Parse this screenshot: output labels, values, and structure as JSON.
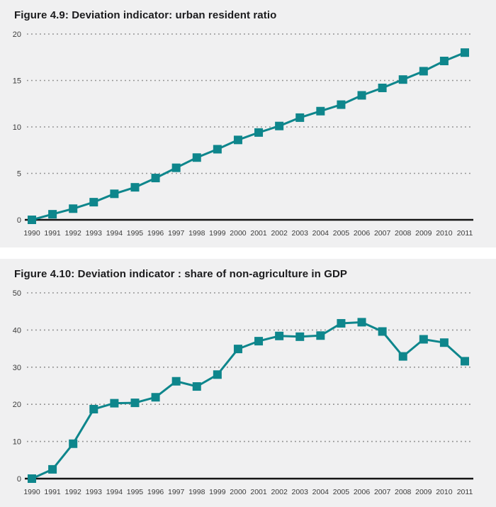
{
  "page": {
    "background": "#ffffff",
    "panel_background": "#f0f0f1"
  },
  "style": {
    "accent": "#0e868c",
    "axis_color": "#141414",
    "grid_color": "#8d8d8d",
    "label_color": "#3b3b3b",
    "title_color": "#1b1b1d"
  },
  "chart_data": [
    {
      "type": "line",
      "title": "Figure 4.9: Deviation indicator: urban resident ratio",
      "x": [
        "1990",
        "1991",
        "1992",
        "1993",
        "1994",
        "1995",
        "1996",
        "1997",
        "1998",
        "1999",
        "2000",
        "2001",
        "2002",
        "2003",
        "2004",
        "2005",
        "2006",
        "2007",
        "2008",
        "2009",
        "2010",
        "2011"
      ],
      "values": [
        0,
        0.6,
        1.2,
        1.9,
        2.8,
        3.5,
        4.5,
        5.6,
        6.7,
        7.6,
        8.6,
        9.4,
        10.1,
        11.0,
        11.7,
        12.4,
        13.4,
        14.2,
        15.1,
        16.0,
        17.1,
        18.0
      ],
      "xlabel": "",
      "ylabel": "",
      "ylim": [
        0,
        20
      ],
      "yticks": [
        0,
        5,
        10,
        15,
        20
      ],
      "grid": "horizontal-dotted",
      "legend": "none",
      "marker": "square",
      "line_color": "#0e868c"
    },
    {
      "type": "line",
      "title": "Figure 4.10: Deviation indicator : share of non-agriculture in GDP",
      "x": [
        "1990",
        "1991",
        "1992",
        "1993",
        "1994",
        "1995",
        "1996",
        "1997",
        "1998",
        "1999",
        "2000",
        "2001",
        "2002",
        "2003",
        "2004",
        "2005",
        "2006",
        "2007",
        "2008",
        "2009",
        "2010",
        "2011"
      ],
      "values": [
        0,
        2.5,
        9.4,
        18.7,
        20.3,
        20.4,
        21.9,
        26.2,
        24.8,
        28.0,
        34.9,
        37.0,
        38.4,
        38.2,
        38.5,
        41.8,
        42.1,
        39.6,
        32.9,
        37.5,
        36.6,
        31.6
      ],
      "xlabel": "",
      "ylabel": "",
      "ylim": [
        0,
        50
      ],
      "yticks": [
        0,
        10,
        20,
        30,
        40,
        50
      ],
      "grid": "horizontal-dotted",
      "legend": "none",
      "marker": "square",
      "line_color": "#0e868c"
    }
  ]
}
